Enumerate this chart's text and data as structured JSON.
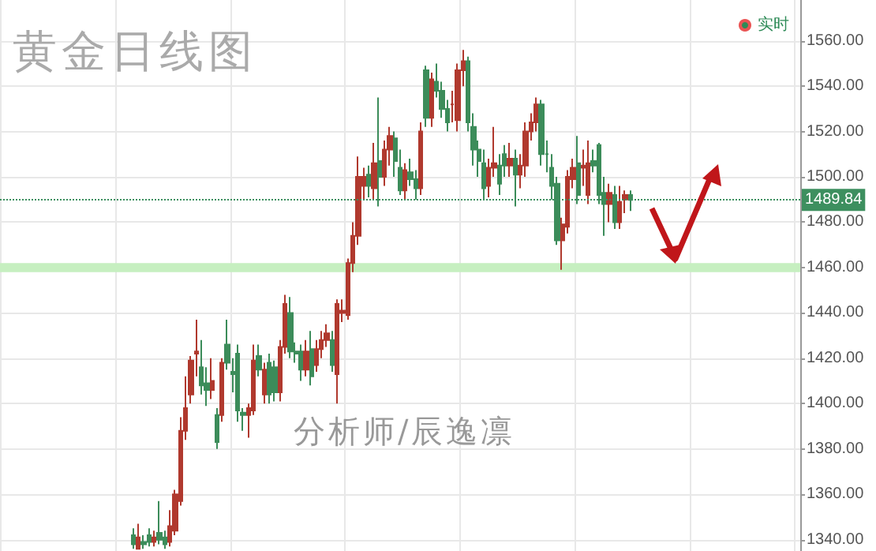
{
  "chart_data": {
    "type": "candlestick",
    "title": "黄金日线图",
    "annotations": [
      "分析师/辰逸凛"
    ],
    "categories": [
      null,
      null,
      null,
      null,
      null,
      null,
      null,
      null,
      null,
      null,
      null,
      null,
      null,
      null,
      null,
      null,
      null,
      null,
      null,
      null,
      null,
      null,
      null,
      null,
      null,
      null,
      null,
      null,
      null,
      null,
      null,
      null,
      null,
      null,
      null,
      null,
      null,
      null,
      null,
      null,
      null,
      null,
      null,
      null,
      null,
      null,
      null,
      null,
      null,
      null,
      null,
      null,
      null,
      null,
      null,
      null,
      null,
      null,
      null,
      null,
      null,
      null,
      null,
      null,
      null,
      null,
      null,
      null,
      null,
      null,
      null,
      null,
      null,
      null,
      null,
      null,
      null,
      null,
      null,
      null,
      null,
      null,
      null,
      null,
      null,
      null,
      null,
      null,
      null,
      null,
      null,
      null,
      null,
      null,
      null,
      null,
      null,
      null,
      null,
      null,
      null,
      null,
      null,
      null,
      null,
      null,
      null,
      null,
      null,
      null,
      null,
      null,
      null,
      null,
      null,
      null,
      null,
      null,
      null,
      null,
      null,
      null,
      null,
      null,
      null,
      null,
      null,
      null,
      null,
      null,
      null,
      null,
      null,
      null,
      null,
      null,
      null,
      null,
      null,
      null,
      null,
      null,
      null,
      null,
      null,
      null,
      null,
      null,
      null,
      null,
      null,
      null,
      null
    ],
    "series": [
      {
        "name": "实时",
        "color": "#2e8b57",
        "ohlc": [
          null,
          null,
          null,
          null,
          null,
          null,
          null,
          null,
          null,
          null,
          null,
          null,
          null,
          null,
          null,
          null,
          null,
          null,
          null,
          null,
          null,
          null,
          null,
          null,
          null,
          [
            1342,
            1345,
            1336,
            1338
          ],
          [
            1336,
            1347,
            1336,
            1341
          ],
          [
            1339,
            1342,
            1336,
            1338
          ],
          [
            1342,
            1345,
            1337,
            1339
          ],
          [
            1339,
            1344,
            1337,
            1341
          ],
          [
            1343,
            1357,
            1338,
            1340
          ],
          [
            1341,
            1344,
            1336,
            1338
          ],
          [
            1339,
            1353,
            1337,
            1346
          ],
          [
            1344,
            1362,
            1342,
            1360
          ],
          [
            1357,
            1394,
            1355,
            1388
          ],
          [
            1388,
            1412,
            1384,
            1398
          ],
          [
            1404,
            1421,
            1400,
            1419
          ],
          [
            1422,
            1437,
            1412,
            1423
          ],
          [
            1416,
            1428,
            1404,
            1408
          ],
          [
            1409,
            1416,
            1399,
            1406
          ],
          [
            1406,
            1420,
            1402,
            1410
          ],
          [
            1395,
            1398,
            1380,
            1383
          ],
          [
            1395,
            1420,
            1392,
            1418
          ],
          [
            1426,
            1437,
            1415,
            1418
          ],
          [
            1414,
            1420,
            1405,
            1413
          ],
          [
            1422,
            1426,
            1392,
            1397
          ],
          [
            1396,
            1398,
            1388,
            1395
          ],
          [
            1395,
            1400,
            1385,
            1398
          ],
          [
            1397,
            1426,
            1395,
            1419
          ],
          [
            1421,
            1426,
            1412,
            1415
          ],
          [
            1404,
            1418,
            1400,
            1415
          ],
          [
            1418,
            1422,
            1400,
            1404
          ],
          [
            1416,
            1419,
            1401,
            1405
          ],
          [
            1405,
            1428,
            1401,
            1425
          ],
          [
            1425,
            1448,
            1422,
            1444
          ],
          [
            1440,
            1447,
            1420,
            1423
          ],
          [
            1423,
            1427,
            1418,
            1422
          ],
          [
            1423,
            1426,
            1410,
            1415
          ],
          [
            1415,
            1428,
            1412,
            1423
          ],
          [
            1424,
            1432,
            1408,
            1412
          ],
          [
            1417,
            1428,
            1414,
            1424
          ],
          [
            1424,
            1432,
            1420,
            1428
          ],
          [
            1428,
            1435,
            1425,
            1431
          ],
          [
            1428,
            1432,
            1414,
            1417
          ],
          [
            1413,
            1446,
            1400,
            1444
          ],
          [
            1440,
            1446,
            1436,
            1441
          ],
          [
            1439,
            1464,
            1437,
            1462
          ],
          [
            1462,
            1480,
            1458,
            1474
          ],
          [
            1474,
            1509,
            1470,
            1500
          ],
          [
            1496,
            1504,
            1490,
            1500
          ],
          [
            1501,
            1505,
            1491,
            1496
          ],
          [
            1495,
            1515,
            1490,
            1506
          ],
          [
            1507,
            1535,
            1487,
            1500
          ],
          [
            1500,
            1516,
            1496,
            1512
          ],
          [
            1512,
            1522,
            1505,
            1518
          ],
          [
            1517,
            1520,
            1500,
            1507
          ],
          [
            1504,
            1512,
            1492,
            1494
          ],
          [
            1494,
            1506,
            1490,
            1503
          ],
          [
            1502,
            1508,
            1496,
            1499
          ],
          [
            1499,
            1503,
            1490,
            1495
          ],
          [
            1495,
            1524,
            1492,
            1520
          ],
          [
            1547,
            1549,
            1522,
            1526
          ],
          [
            1526,
            1546,
            1522,
            1543
          ],
          [
            1542,
            1550,
            1535,
            1538
          ],
          [
            1538,
            1542,
            1526,
            1530
          ],
          [
            1530,
            1534,
            1520,
            1524
          ],
          [
            1532,
            1538,
            1524,
            1532
          ],
          [
            1525,
            1550,
            1520,
            1547
          ],
          [
            1547,
            1556,
            1540,
            1551
          ],
          [
            1551,
            1553,
            1520,
            1524
          ],
          [
            1522,
            1528,
            1505,
            1512
          ],
          [
            1512,
            1516,
            1500,
            1507
          ],
          [
            1506,
            1512,
            1490,
            1495
          ],
          [
            1496,
            1508,
            1491,
            1504
          ],
          [
            1504,
            1522,
            1500,
            1506
          ],
          [
            1505,
            1510,
            1492,
            1497
          ],
          [
            1510,
            1514,
            1500,
            1505
          ],
          [
            1505,
            1515,
            1500,
            1508
          ],
          [
            1508,
            1512,
            1487,
            1501
          ],
          [
            1501,
            1510,
            1495,
            1505
          ],
          [
            1505,
            1524,
            1500,
            1520
          ],
          [
            1520,
            1528,
            1516,
            1524
          ],
          [
            1524,
            1535,
            1520,
            1532
          ],
          [
            1532,
            1534,
            1505,
            1510
          ],
          [
            1510,
            1516,
            1502,
            1510
          ],
          [
            1504,
            1510,
            1490,
            1496
          ],
          [
            1497,
            1500,
            1470,
            1472
          ],
          [
            1472,
            1482,
            1459,
            1479
          ],
          [
            1478,
            1503,
            1475,
            1500
          ],
          [
            1499,
            1508,
            1495,
            1504
          ],
          [
            1506,
            1518,
            1488,
            1492
          ],
          [
            1504,
            1512,
            1496,
            1505
          ],
          [
            1492,
            1516,
            1488,
            1506
          ],
          [
            1507,
            1512,
            1502,
            1505
          ],
          [
            1514,
            1515,
            1488,
            1492
          ],
          [
            1493,
            1500,
            1474,
            1488
          ],
          [
            1488,
            1497,
            1480,
            1493
          ],
          [
            1492,
            1496,
            1477,
            1480
          ],
          [
            1480,
            1496,
            1477,
            1489
          ],
          [
            1490,
            1494,
            1484,
            1492
          ],
          [
            1492,
            1494,
            1485,
            1489.84
          ],
          null,
          null,
          null,
          null,
          null,
          null,
          null,
          null,
          null,
          null,
          null,
          null,
          null,
          null,
          null,
          null,
          null,
          null,
          null,
          null,
          null,
          null,
          null,
          null,
          null,
          null,
          null,
          null,
          null,
          null,
          null,
          null
        ],
        "colors": [
          null,
          null,
          null,
          null,
          null,
          null,
          null,
          null,
          null,
          null,
          null,
          null,
          null,
          null,
          null,
          null,
          null,
          null,
          null,
          null,
          null,
          null,
          null,
          null,
          null,
          "#3c8c5a",
          "#b0392e",
          "#3c8c5a",
          "#3c8c5a",
          "#b0392e",
          "#3c8c5a",
          "#3c8c5a",
          "#b0392e",
          "#b0392e",
          "#b0392e",
          "#b0392e",
          "#b0392e",
          "#b0392e",
          "#3c8c5a",
          "#3c8c5a",
          "#b0392e",
          "#3c8c5a",
          "#b0392e",
          "#3c8c5a",
          "#3c8c5a",
          "#3c8c5a",
          "#3c8c5a",
          "#b0392e",
          "#b0392e",
          "#3c8c5a",
          "#b0392e",
          "#3c8c5a",
          "#3c8c5a",
          "#b0392e",
          "#b0392e",
          "#3c8c5a",
          "#3c8c5a",
          "#3c8c5a",
          "#b0392e",
          "#3c8c5a",
          "#b0392e",
          "#b0392e",
          "#b0392e",
          "#3c8c5a",
          "#b0392e",
          "#b0392e",
          "#b0392e",
          "#b0392e",
          "#b0392e",
          "#b0392e",
          "#3c8c5a",
          "#b0392e",
          "#3c8c5a",
          "#b0392e",
          "#b0392e",
          "#3c8c5a",
          "#3c8c5a",
          "#b0392e",
          "#3c8c5a",
          "#3c8c5a",
          "#b0392e",
          "#3c8c5a",
          "#b0392e",
          "#3c8c5a",
          "#3c8c5a",
          "#3c8c5a",
          "#b0392e",
          "#b0392e",
          "#b0392e",
          "#3c8c5a",
          "#3c8c5a",
          "#3c8c5a",
          "#3c8c5a",
          "#b0392e",
          "#b0392e",
          "#3c8c5a",
          "#3c8c5a",
          "#b0392e",
          "#3c8c5a",
          "#b0392e",
          "#b0392e",
          "#b0392e",
          "#b0392e",
          "#3c8c5a",
          "#3c8c5a",
          "#3c8c5a",
          "#3c8c5a",
          "#b0392e",
          "#b0392e",
          "#b0392e",
          "#3c8c5a",
          "#b0392e",
          "#b0392e",
          "#3c8c5a",
          "#3c8c5a",
          "#3c8c5a",
          "#b0392e",
          "#3c8c5a",
          "#b0392e",
          "#b0392e",
          "#3c8c5a",
          null,
          null,
          null,
          null,
          null,
          null,
          null,
          null,
          null,
          null,
          null,
          null,
          null,
          null,
          null,
          null,
          null,
          null,
          null,
          null,
          null,
          null,
          null,
          null,
          null,
          null,
          null,
          null,
          null,
          null,
          null,
          null
        ]
      }
    ],
    "ylim": [
      1335,
      1578
    ],
    "yticks": [
      {
        "value": 1340,
        "label": "1340.00"
      },
      {
        "value": 1360,
        "label": "1360.00"
      },
      {
        "value": 1380,
        "label": "1380.00"
      },
      {
        "value": 1400,
        "label": "1400.00"
      },
      {
        "value": 1420,
        "label": "1420.00"
      },
      {
        "value": 1440,
        "label": "1440.00"
      },
      {
        "value": 1460,
        "label": "1460.00"
      },
      {
        "value": 1480,
        "label": "1480.00"
      },
      {
        "value": 1500,
        "label": "1500.00"
      },
      {
        "value": 1520,
        "label": "1520.00"
      },
      {
        "value": 1540,
        "label": "1540.00"
      },
      {
        "value": 1560,
        "label": "1560.00"
      }
    ],
    "ref_lines": [
      {
        "axis": "y",
        "value": 1489.84,
        "label": "1489.84",
        "color": "#3d8f5f",
        "line_style": "dotted"
      }
    ],
    "bands": [
      {
        "axis": "y",
        "from": 1458,
        "to": 1462,
        "color": "#c6efc0"
      }
    ],
    "grid": true,
    "legend": "top right"
  }
}
